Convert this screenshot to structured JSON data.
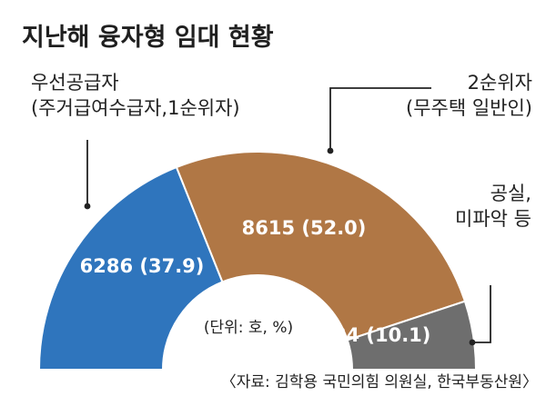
{
  "chart_data": {
    "type": "pie",
    "title": "지난해 융자형 임대 현황",
    "unit_note": "(단위: 호, %)",
    "source": "〈자료: 김학용 국민의힘 의원실, 한국부동산원〉",
    "slices": [
      {
        "label_lines": [
          "우선공급자",
          "(주거급여수급자,1순위자)"
        ],
        "value": 6286,
        "percent": 37.9,
        "value_text": "6286 (37.9)",
        "color": "#2f75bd"
      },
      {
        "label_lines": [
          "2순위자",
          "(무주택 일반인)"
        ],
        "value": 8615,
        "percent": 52.0,
        "value_text": "8615 (52.0)",
        "color": "#b07745"
      },
      {
        "label_lines": [
          "공실,",
          "미파악 등"
        ],
        "value": 1684,
        "percent": 10.1,
        "value_text": "1684 (10.1)",
        "color": "#6e6e6e"
      }
    ]
  }
}
